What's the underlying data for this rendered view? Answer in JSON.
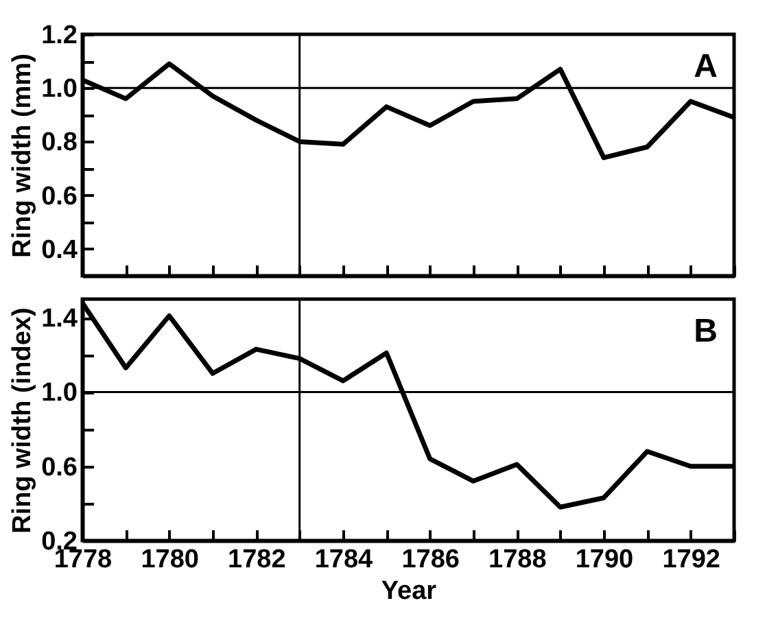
{
  "chart_data": [
    {
      "type": "line",
      "ylabel": "Ring width (mm)",
      "annotations": [
        "A"
      ],
      "x": [
        1778,
        1779,
        1780,
        1781,
        1782,
        1783,
        1784,
        1785,
        1786,
        1787,
        1788,
        1789,
        1790,
        1791,
        1792,
        1793
      ],
      "series": [
        {
          "color": "#000000",
          "values": [
            1.03,
            0.96,
            1.09,
            0.97,
            0.88,
            0.8,
            0.79,
            0.93,
            0.86,
            0.95,
            0.96,
            1.07,
            0.74,
            0.78,
            0.95,
            0.89
          ]
        }
      ],
      "xlim": [
        1778,
        1793
      ],
      "xticks": [
        {
          "value": 1778,
          "label": null
        },
        {
          "value": 1779,
          "label": null
        },
        {
          "value": 1780,
          "label": null
        },
        {
          "value": 1781,
          "label": null
        },
        {
          "value": 1782,
          "label": null
        },
        {
          "value": 1783,
          "label": null
        },
        {
          "value": 1784,
          "label": null
        },
        {
          "value": 1785,
          "label": null
        },
        {
          "value": 1786,
          "label": null
        },
        {
          "value": 1787,
          "label": null
        },
        {
          "value": 1788,
          "label": null
        },
        {
          "value": 1789,
          "label": null
        },
        {
          "value": 1790,
          "label": null
        },
        {
          "value": 1791,
          "label": null
        },
        {
          "value": 1792,
          "label": null
        },
        {
          "value": 1793,
          "label": null
        }
      ],
      "ylim": [
        0.3,
        1.2
      ],
      "yticks": [
        {
          "value": 0.3,
          "label": null
        },
        0.4,
        {
          "value": 0.5,
          "label": null
        },
        0.6,
        {
          "value": 0.7,
          "label": null
        },
        0.8,
        {
          "value": 0.9,
          "label": null
        },
        {
          "value": 1.0,
          "label": "1.0"
        },
        {
          "value": 1.1,
          "label": null
        },
        1.2
      ],
      "tick_labels": "y",
      "grid": false,
      "ref_lines": [
        {
          "axis": "y",
          "value": 1.0
        },
        {
          "axis": "x",
          "value": 1783
        }
      ]
    },
    {
      "type": "line",
      "xlabel": "Year",
      "ylabel": "Ring width (index)",
      "annotations": [
        "B"
      ],
      "x": [
        1778,
        1779,
        1780,
        1781,
        1782,
        1783,
        1784,
        1785,
        1786,
        1787,
        1788,
        1789,
        1790,
        1791,
        1792,
        1793
      ],
      "series": [
        {
          "color": "#000000",
          "values": [
            1.48,
            1.13,
            1.41,
            1.1,
            1.23,
            1.18,
            1.06,
            1.21,
            0.64,
            0.52,
            0.61,
            0.38,
            0.43,
            0.68,
            0.6,
            0.6
          ]
        }
      ],
      "xlim": [
        1778,
        1793
      ],
      "xticks": [
        1778,
        {
          "value": 1779,
          "label": null
        },
        1780,
        {
          "value": 1781,
          "label": null
        },
        1782,
        {
          "value": 1783,
          "label": null
        },
        1784,
        {
          "value": 1785,
          "label": null
        },
        1786,
        {
          "value": 1787,
          "label": null
        },
        1788,
        {
          "value": 1789,
          "label": null
        },
        1790,
        {
          "value": 1791,
          "label": null
        },
        1792,
        {
          "value": 1793,
          "label": null
        }
      ],
      "ylim": [
        0.2,
        1.5
      ],
      "yticks": [
        0.2,
        {
          "value": 0.4,
          "label": null
        },
        0.6,
        {
          "value": 0.8,
          "label": null
        },
        {
          "value": 1.0,
          "label": "1.0"
        },
        {
          "value": 1.2,
          "label": null
        },
        1.4
      ],
      "grid": false,
      "ref_lines": [
        {
          "axis": "y",
          "value": 1.0
        },
        {
          "axis": "x",
          "value": 1783
        }
      ]
    }
  ]
}
